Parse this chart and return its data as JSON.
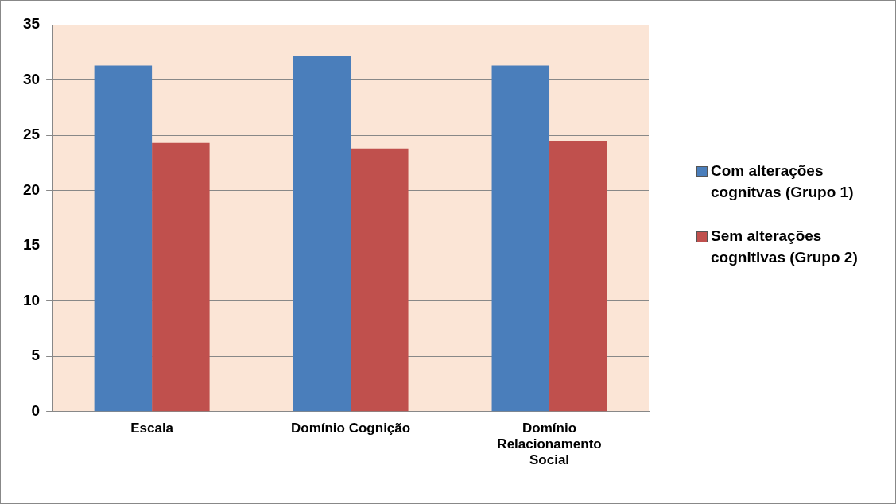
{
  "chart_data": {
    "type": "bar",
    "categories": [
      "Escala",
      "Domínio Cognição",
      "Domínio Relacionamento Social"
    ],
    "series": [
      {
        "name": "Com alterações cognitvas (Grupo 1)",
        "color": "#4a7ebb",
        "values": [
          31.3,
          32.2,
          31.3
        ]
      },
      {
        "name": "Sem alterações cognitivas (Grupo 2)",
        "color": "#c0504d",
        "values": [
          24.3,
          23.8,
          24.5
        ]
      }
    ],
    "ylim": [
      0,
      35
    ],
    "yticks": [
      0,
      5,
      10,
      15,
      20,
      25,
      30,
      35
    ],
    "grid": "y",
    "legend": "right"
  }
}
